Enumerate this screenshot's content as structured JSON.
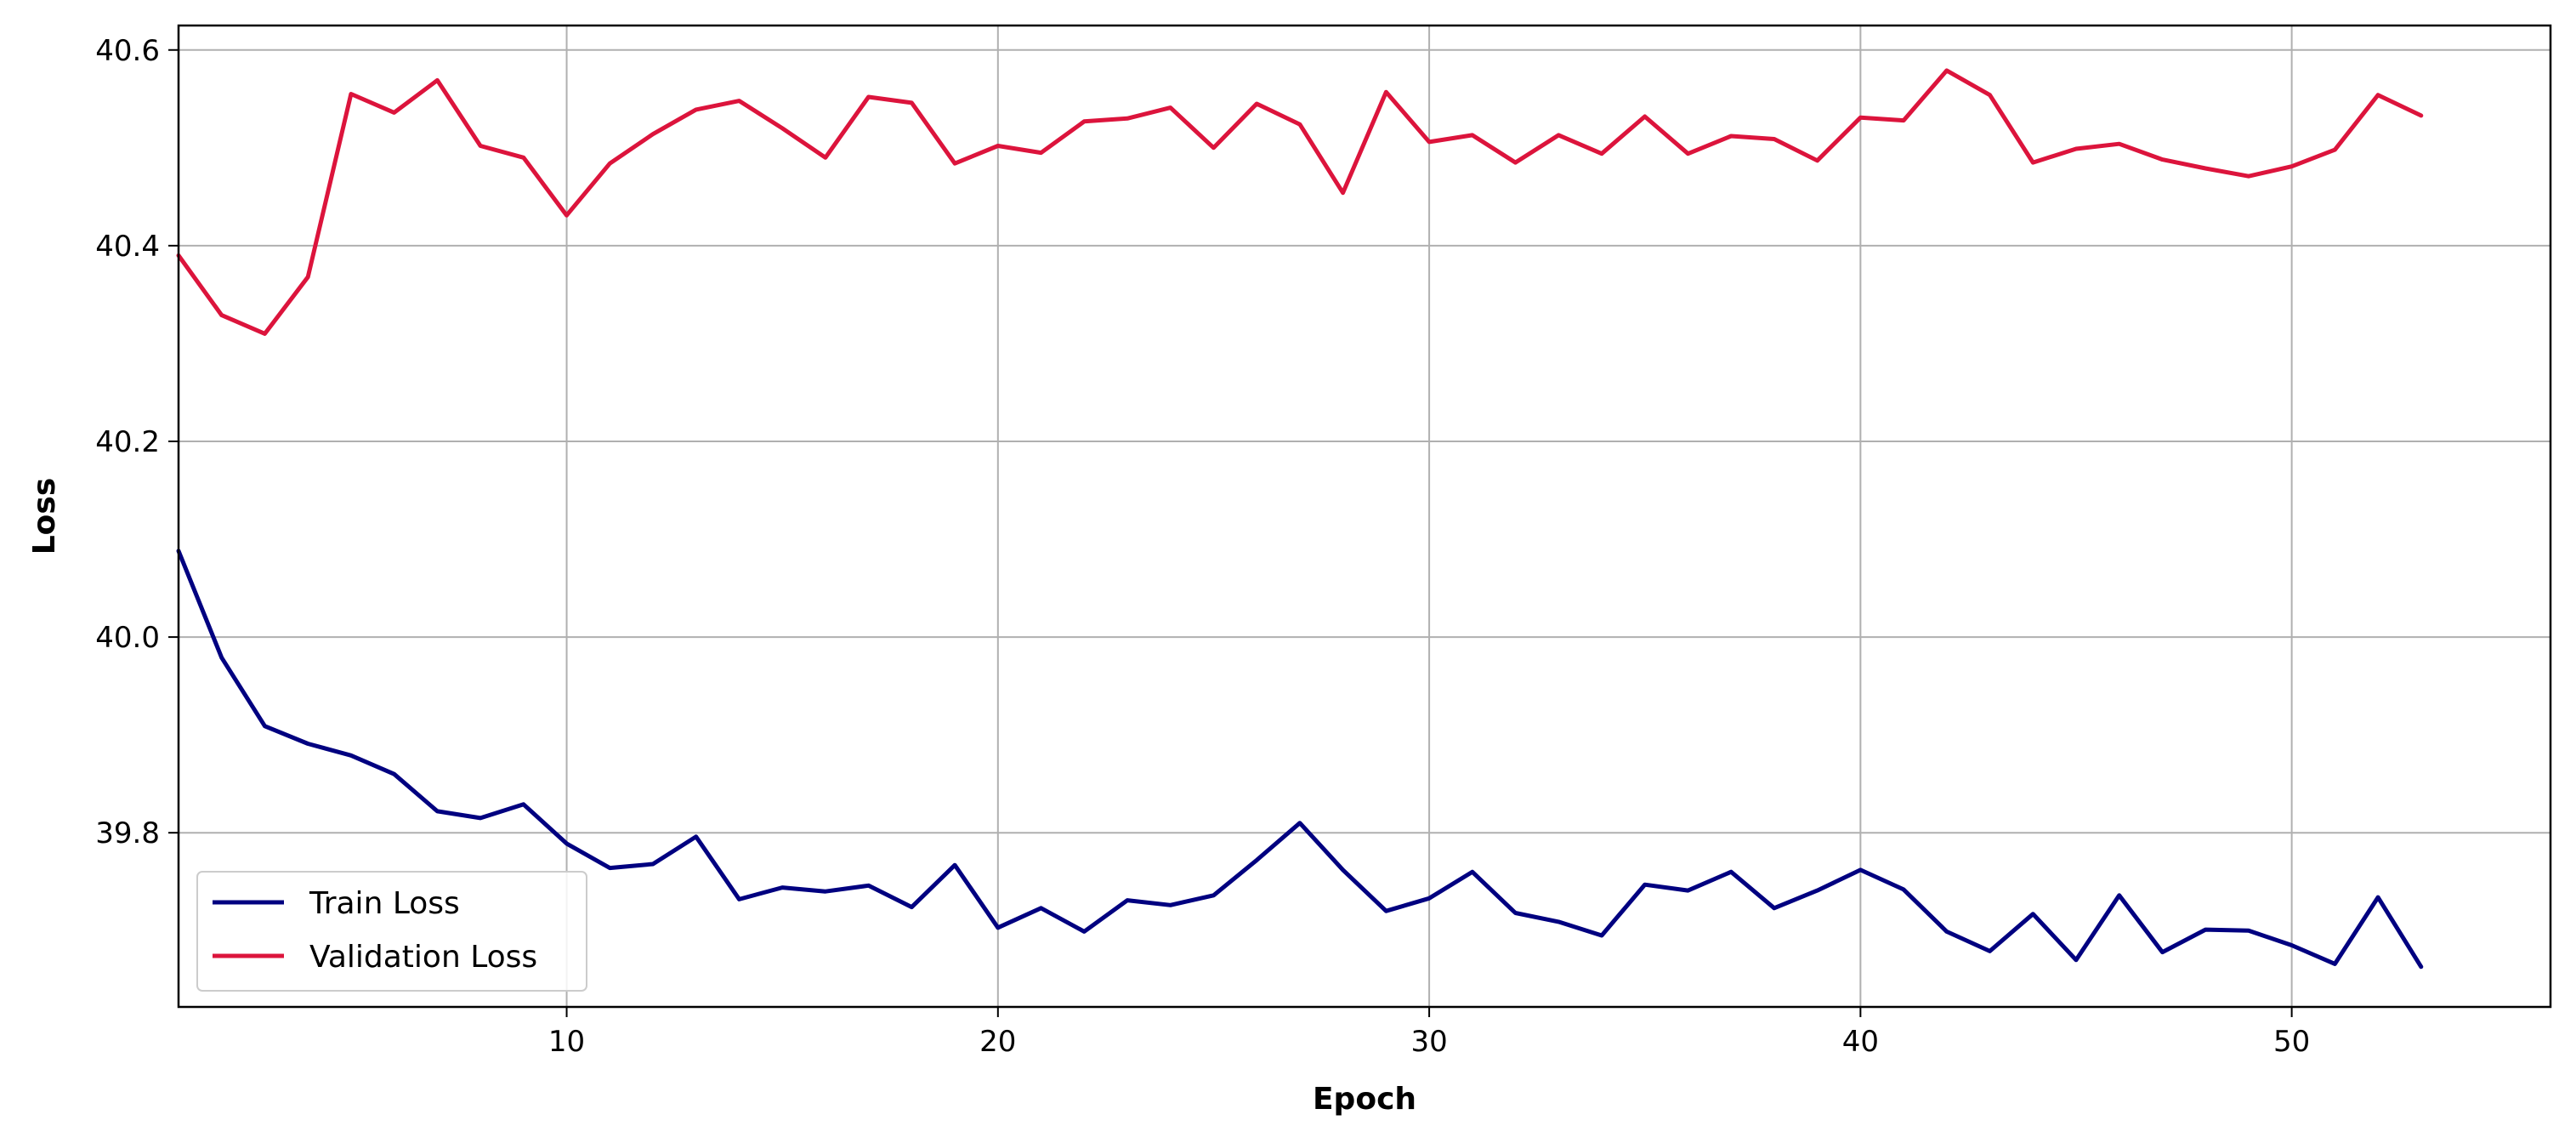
{
  "chart_data": {
    "type": "line",
    "title": "",
    "xlabel": "Epoch",
    "ylabel": "Loss",
    "xlim": [
      1,
      56
    ],
    "ylim": [
      39.622,
      40.625
    ],
    "xticks": [
      10,
      20,
      30,
      40,
      50
    ],
    "yticks": [
      39.8,
      40.0,
      40.2,
      40.4,
      40.6
    ],
    "xtick_labels": [
      "10",
      "20",
      "30",
      "40",
      "50"
    ],
    "ytick_labels": [
      "39.8",
      "40.0",
      "40.2",
      "40.4",
      "40.6"
    ],
    "grid": true,
    "legend_position": "lower-left",
    "x": [
      1,
      2,
      3,
      4,
      5,
      6,
      7,
      8,
      9,
      10,
      11,
      12,
      13,
      14,
      15,
      16,
      17,
      18,
      19,
      20,
      21,
      22,
      23,
      24,
      25,
      26,
      27,
      28,
      29,
      30,
      31,
      32,
      33,
      34,
      35,
      36,
      37,
      38,
      39,
      40,
      41,
      42,
      43,
      44,
      45,
      46,
      47,
      48,
      49,
      50,
      51,
      52,
      53
    ],
    "series": [
      {
        "name": "Train Loss",
        "color": "#000080",
        "values": [
          40.088,
          39.979,
          39.909,
          39.891,
          39.879,
          39.86,
          39.822,
          39.815,
          39.829,
          39.789,
          39.764,
          39.768,
          39.796,
          39.732,
          39.744,
          39.74,
          39.746,
          39.724,
          39.767,
          39.703,
          39.723,
          39.699,
          39.731,
          39.726,
          39.736,
          39.772,
          39.81,
          39.762,
          39.72,
          39.733,
          39.76,
          39.718,
          39.709,
          39.695,
          39.747,
          39.741,
          39.76,
          39.723,
          39.741,
          39.762,
          39.742,
          39.699,
          39.679,
          39.717,
          39.67,
          39.736,
          39.678,
          39.701,
          39.7,
          39.685,
          39.666,
          39.734,
          39.663
        ]
      },
      {
        "name": "Validation Loss",
        "color": "#DC143C",
        "values": [
          40.39,
          40.329,
          40.31,
          40.368,
          40.555,
          40.536,
          40.569,
          40.502,
          40.49,
          40.431,
          40.484,
          40.514,
          40.539,
          40.548,
          40.52,
          40.49,
          40.552,
          40.546,
          40.484,
          40.502,
          40.495,
          40.527,
          40.53,
          40.541,
          40.5,
          40.545,
          40.524,
          40.454,
          40.557,
          40.506,
          40.513,
          40.485,
          40.513,
          40.494,
          40.532,
          40.494,
          40.512,
          40.509,
          40.487,
          40.531,
          40.528,
          40.579,
          40.554,
          40.485,
          40.499,
          40.504,
          40.488,
          40.479,
          40.471,
          40.481,
          40.498,
          40.554,
          40.533
        ]
      }
    ]
  }
}
